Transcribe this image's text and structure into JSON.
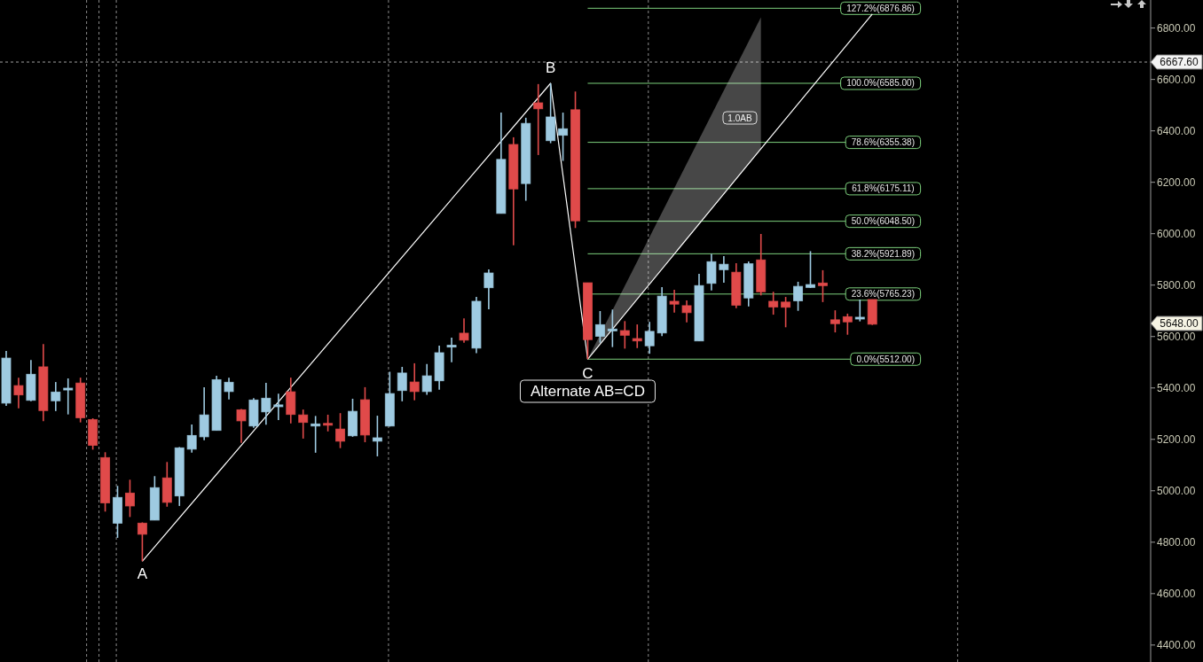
{
  "chart_data": {
    "type": "candlestick",
    "categories": [
      null,
      null,
      null,
      null,
      null,
      null,
      null,
      null,
      null,
      null,
      null,
      null,
      null,
      null,
      null,
      null,
      null,
      null,
      null,
      null,
      null,
      null,
      null,
      null,
      null,
      null,
      null,
      null,
      null,
      null,
      null,
      null,
      null,
      null,
      null,
      null,
      null,
      null,
      null,
      null,
      null,
      null,
      null,
      null,
      null,
      null,
      null,
      null,
      null,
      null,
      null,
      null,
      null,
      null,
      null,
      null,
      null,
      null,
      null,
      null,
      null,
      null,
      null,
      null,
      null,
      null,
      null,
      null,
      null,
      null,
      null,
      null,
      null,
      null,
      null,
      null,
      null,
      null,
      null,
      null,
      null,
      null,
      null,
      null,
      null,
      null,
      null,
      null,
      null,
      null,
      null,
      null,
      null
    ],
    "ohlc": [
      [
        5341,
        5544,
        5330,
        5516
      ],
      [
        5409,
        5440,
        5321,
        5373
      ],
      [
        5352,
        5509,
        5348,
        5453
      ],
      [
        5482,
        5571,
        5271,
        5312
      ],
      [
        5350,
        5423,
        5310,
        5384
      ],
      [
        5395,
        5437,
        5297,
        5399
      ],
      [
        5419,
        5440,
        5266,
        5284
      ],
      [
        5277,
        5282,
        5160,
        5177
      ],
      [
        5129,
        5150,
        4919,
        4953
      ],
      [
        4874,
        5019,
        4817,
        4974
      ],
      [
        4991,
        5043,
        4898,
        4941
      ],
      [
        4874,
        4877,
        4726,
        4831
      ],
      [
        4886,
        5057,
        4886,
        5012
      ],
      [
        5050,
        5112,
        4938,
        4955
      ],
      [
        4980,
        5170,
        4941,
        5167
      ],
      [
        5162,
        5258,
        5148,
        5215
      ],
      [
        5210,
        5403,
        5197,
        5295
      ],
      [
        5235,
        5447,
        5235,
        5432
      ],
      [
        5386,
        5440,
        5355,
        5422
      ],
      [
        5315,
        5318,
        5186,
        5272
      ],
      [
        5252,
        5360,
        5245,
        5353
      ],
      [
        5307,
        5420,
        5257,
        5360
      ],
      [
        5330,
        5378,
        5275,
        5334
      ],
      [
        5385,
        5440,
        5262,
        5297
      ],
      [
        5295,
        5316,
        5203,
        5266
      ],
      [
        5252,
        5291,
        5148,
        5260
      ],
      [
        5262,
        5296,
        5231,
        5256
      ],
      [
        5240,
        5302,
        5166,
        5193
      ],
      [
        5214,
        5358,
        5210,
        5309
      ],
      [
        5354,
        5403,
        5189,
        5217
      ],
      [
        5193,
        5292,
        5134,
        5206
      ],
      [
        5252,
        5463,
        5250,
        5378
      ],
      [
        5390,
        5482,
        5348,
        5458
      ],
      [
        5423,
        5496,
        5352,
        5386
      ],
      [
        5386,
        5493,
        5373,
        5447
      ],
      [
        5428,
        5565,
        5393,
        5537
      ],
      [
        5562,
        5596,
        5500,
        5566
      ],
      [
        5613,
        5671,
        5576,
        5586
      ],
      [
        5555,
        5754,
        5535,
        5737
      ],
      [
        5790,
        5861,
        5706,
        5847
      ],
      [
        6079,
        6471,
        6079,
        6289
      ],
      [
        6347,
        6375,
        5955,
        6174
      ],
      [
        6195,
        6451,
        6128,
        6429
      ],
      [
        6509,
        6582,
        6306,
        6486
      ],
      [
        6362,
        6585,
        6352,
        6454
      ],
      [
        6383,
        6471,
        6283,
        6408
      ],
      [
        6482,
        6553,
        6022,
        6050
      ],
      [
        5809,
        5809,
        5512,
        5588
      ],
      [
        5601,
        5699,
        5576,
        5646
      ],
      [
        5622,
        5705,
        5559,
        5629
      ],
      [
        5623,
        5660,
        5553,
        5605
      ],
      [
        5592,
        5647,
        5555,
        5583
      ],
      [
        5564,
        5657,
        5533,
        5620
      ],
      [
        5614,
        5792,
        5602,
        5757
      ],
      [
        5737,
        5782,
        5693,
        5726
      ],
      [
        5720,
        5740,
        5655,
        5693
      ],
      [
        5583,
        5844,
        5583,
        5798
      ],
      [
        5807,
        5921,
        5779,
        5891
      ],
      [
        5860,
        5913,
        5809,
        5881
      ],
      [
        5850,
        5885,
        5710,
        5722
      ],
      [
        5750,
        5892,
        5717,
        5883
      ],
      [
        5898,
        5999,
        5760,
        5774
      ],
      [
        5737,
        5774,
        5685,
        5715
      ],
      [
        5734,
        5754,
        5636,
        5714
      ],
      [
        5739,
        5813,
        5700,
        5795
      ],
      [
        5791,
        5932,
        5789,
        5802
      ],
      [
        5808,
        5858,
        5734,
        5798
      ],
      [
        5665,
        5702,
        5616,
        5650
      ],
      [
        5677,
        5689,
        5607,
        5657
      ],
      [
        5670,
        5744,
        5659,
        5675
      ],
      [
        5744,
        5744,
        5645,
        5648
      ],
      null,
      null,
      null,
      null,
      null,
      null,
      null,
      null,
      null,
      null,
      null,
      null,
      null,
      null,
      null,
      null,
      null,
      null,
      null,
      null,
      null,
      null
    ],
    "colors": [
      "#9ecae1",
      "#e04a4a",
      "#9ecae1",
      "#e04a4a",
      "#9ecae1",
      "#9ecae1",
      "#e04a4a",
      "#e04a4a",
      "#e04a4a",
      "#9ecae1",
      "#e04a4a",
      "#e04a4a",
      "#9ecae1",
      "#e04a4a",
      "#9ecae1",
      "#9ecae1",
      "#9ecae1",
      "#9ecae1",
      "#9ecae1",
      "#e04a4a",
      "#9ecae1",
      "#9ecae1",
      "#9ecae1",
      "#e04a4a",
      "#e04a4a",
      "#9ecae1",
      "#e04a4a",
      "#e04a4a",
      "#9ecae1",
      "#e04a4a",
      "#9ecae1",
      "#9ecae1",
      "#9ecae1",
      "#e04a4a",
      "#9ecae1",
      "#9ecae1",
      "#9ecae1",
      "#e04a4a",
      "#9ecae1",
      "#9ecae1",
      "#9ecae1",
      "#e04a4a",
      "#9ecae1",
      "#e04a4a",
      "#9ecae1",
      "#9ecae1",
      "#e04a4a",
      "#e04a4a",
      "#9ecae1",
      "#9ecae1",
      "#e04a4a",
      "#e04a4a",
      "#9ecae1",
      "#9ecae1",
      "#e04a4a",
      "#e04a4a",
      "#9ecae1",
      "#9ecae1",
      "#9ecae1",
      "#e04a4a",
      "#9ecae1",
      "#e04a4a",
      "#e04a4a",
      "#e04a4a",
      "#9ecae1",
      "#9ecae1",
      "#e04a4a",
      "#e04a4a",
      "#e04a4a",
      "#9ecae1",
      "#e04a4a",
      null,
      null,
      null,
      null,
      null,
      null,
      null,
      null,
      null,
      null,
      null,
      null,
      null,
      null,
      null,
      null,
      null,
      null,
      null,
      null,
      null,
      null
    ],
    "series": [
      {
        "type": "line",
        "color": "#ffffff",
        "values": [
          null,
          null,
          null,
          null,
          null,
          null,
          null,
          null,
          null,
          null,
          null,
          4726,
          null,
          null,
          null,
          null,
          null,
          null,
          null,
          null,
          null,
          null,
          null,
          null,
          null,
          null,
          null,
          null,
          null,
          null,
          null,
          null,
          null,
          null,
          null,
          null,
          null,
          null,
          null,
          null,
          null,
          null,
          null,
          null,
          6585,
          null,
          null,
          5512,
          null,
          null,
          null,
          null,
          null,
          null,
          null,
          null,
          null,
          null,
          null,
          null,
          null,
          null,
          null,
          null,
          null,
          null,
          null,
          null,
          null,
          null,
          null,
          null,
          null,
          null,
          null,
          null,
          null,
          null,
          null,
          null,
          null,
          null,
          null,
          null,
          null,
          null,
          null,
          null,
          null,
          null,
          null,
          null,
          null
        ]
      },
      {
        "type": "line",
        "color": "#ffffff",
        "values": [
          null,
          null,
          null,
          null,
          null,
          null,
          null,
          null,
          null,
          null,
          null,
          null,
          null,
          null,
          null,
          null,
          null,
          null,
          null,
          null,
          null,
          null,
          null,
          null,
          null,
          null,
          null,
          null,
          null,
          null,
          null,
          null,
          null,
          null,
          null,
          null,
          null,
          null,
          null,
          null,
          null,
          null,
          null,
          null,
          null,
          null,
          null,
          5512,
          null,
          null,
          null,
          null,
          null,
          null,
          null,
          null,
          null,
          null,
          null,
          null,
          null,
          6330,
          null,
          null,
          null,
          null,
          null,
          null,
          null,
          null,
          6854,
          null,
          null,
          null,
          null,
          null,
          null,
          null,
          null,
          null,
          null,
          null,
          null,
          null,
          null,
          null,
          null,
          null,
          null,
          null,
          null,
          null,
          null
        ],
        "lower": [
          null,
          null,
          null,
          null,
          null,
          null,
          null,
          null,
          null,
          null,
          null,
          null,
          null,
          null,
          null,
          null,
          null,
          null,
          null,
          null,
          null,
          null,
          null,
          null,
          null,
          null,
          null,
          null,
          null,
          null,
          null,
          null,
          null,
          null,
          null,
          null,
          null,
          null,
          null,
          null,
          null,
          null,
          null,
          null,
          null,
          null,
          null,
          5512,
          null,
          null,
          null,
          null,
          null,
          null,
          null,
          null,
          null,
          null,
          null,
          null,
          null,
          6330,
          null,
          null,
          null,
          null,
          null,
          null,
          null,
          null,
          null,
          null,
          null,
          null,
          null,
          null,
          null,
          null,
          null,
          null,
          null,
          null,
          null,
          null,
          null,
          null,
          null,
          null,
          null,
          null,
          null,
          null,
          null
        ],
        "upper": [
          null,
          null,
          null,
          null,
          null,
          null,
          null,
          null,
          null,
          null,
          null,
          null,
          null,
          null,
          null,
          null,
          null,
          null,
          null,
          null,
          null,
          null,
          null,
          null,
          null,
          null,
          null,
          null,
          null,
          null,
          null,
          null,
          null,
          null,
          null,
          null,
          null,
          null,
          null,
          null,
          null,
          null,
          null,
          null,
          null,
          null,
          null,
          5512,
          null,
          null,
          null,
          null,
          null,
          null,
          null,
          null,
          null,
          null,
          null,
          null,
          null,
          6842,
          null,
          null,
          null,
          null,
          null,
          null,
          null,
          null,
          null,
          null,
          null,
          null,
          null,
          null,
          null,
          null,
          null,
          null,
          null,
          null,
          null,
          null,
          null,
          null,
          null,
          null,
          null,
          null,
          null,
          null,
          null
        ]
      }
    ],
    "grid": "x",
    "ylim": [
      4334,
      6909
    ],
    "yticks": [
      {
        "value": 4400,
        "label": "4400.00"
      },
      {
        "value": 4600,
        "label": "4600.00"
      },
      {
        "value": 4800,
        "label": "4800.00"
      },
      {
        "value": 5000,
        "label": "5000.00"
      },
      {
        "value": 5200,
        "label": "5200.00"
      },
      {
        "value": 5400,
        "label": "5400.00"
      },
      {
        "value": 5600,
        "label": "5600.00"
      },
      {
        "value": 5800,
        "label": "5800.00"
      },
      {
        "value": 6000,
        "label": "6000.00"
      },
      {
        "value": 6200,
        "label": "6200.00"
      },
      {
        "value": 6400,
        "label": "6400.00"
      },
      {
        "value": 6600,
        "label": "6600.00"
      },
      {
        "value": 6800,
        "label": "6800.00"
      }
    ],
    "ref_lines": [
      {
        "axis": "y",
        "value": 6876.86,
        "label": "127.2%(6876.86)",
        "color": "#7ccf7c"
      },
      {
        "axis": "y",
        "value": 6585,
        "label": "100.0%(6585.00)",
        "color": "#7ccf7c"
      },
      {
        "axis": "y",
        "value": 6355.38,
        "label": "78.6%(6355.38)",
        "color": "#7ccf7c"
      },
      {
        "axis": "y",
        "value": 6175.11,
        "label": "61.8%(6175.11)",
        "color": "#7ccf7c"
      },
      {
        "axis": "y",
        "value": 6048.5,
        "label": "50.0%(6048.50)",
        "color": "#7ccf7c"
      },
      {
        "axis": "y",
        "value": 5921.89,
        "label": "38.2%(5921.89)",
        "color": "#7ccf7c"
      },
      {
        "axis": "y",
        "value": 5765.23,
        "label": "23.6%(5765.23)",
        "color": "#7ccf7c"
      },
      {
        "axis": "y",
        "value": 5512,
        "label": "0.0%(5512.00)",
        "color": "#7ccf7c"
      },
      {
        "axis": "y",
        "value": 6667.6,
        "label": "6667.60",
        "color": "#a0a0a0",
        "line_style": "dashed"
      }
    ],
    "annotations": [
      {
        "text": "A",
        "y": 4726
      },
      {
        "text": "B",
        "y": 6585
      },
      {
        "text": "C",
        "y": 5512
      },
      "Alternate AB=CD",
      "1.0AB",
      "5648.00"
    ]
  }
}
